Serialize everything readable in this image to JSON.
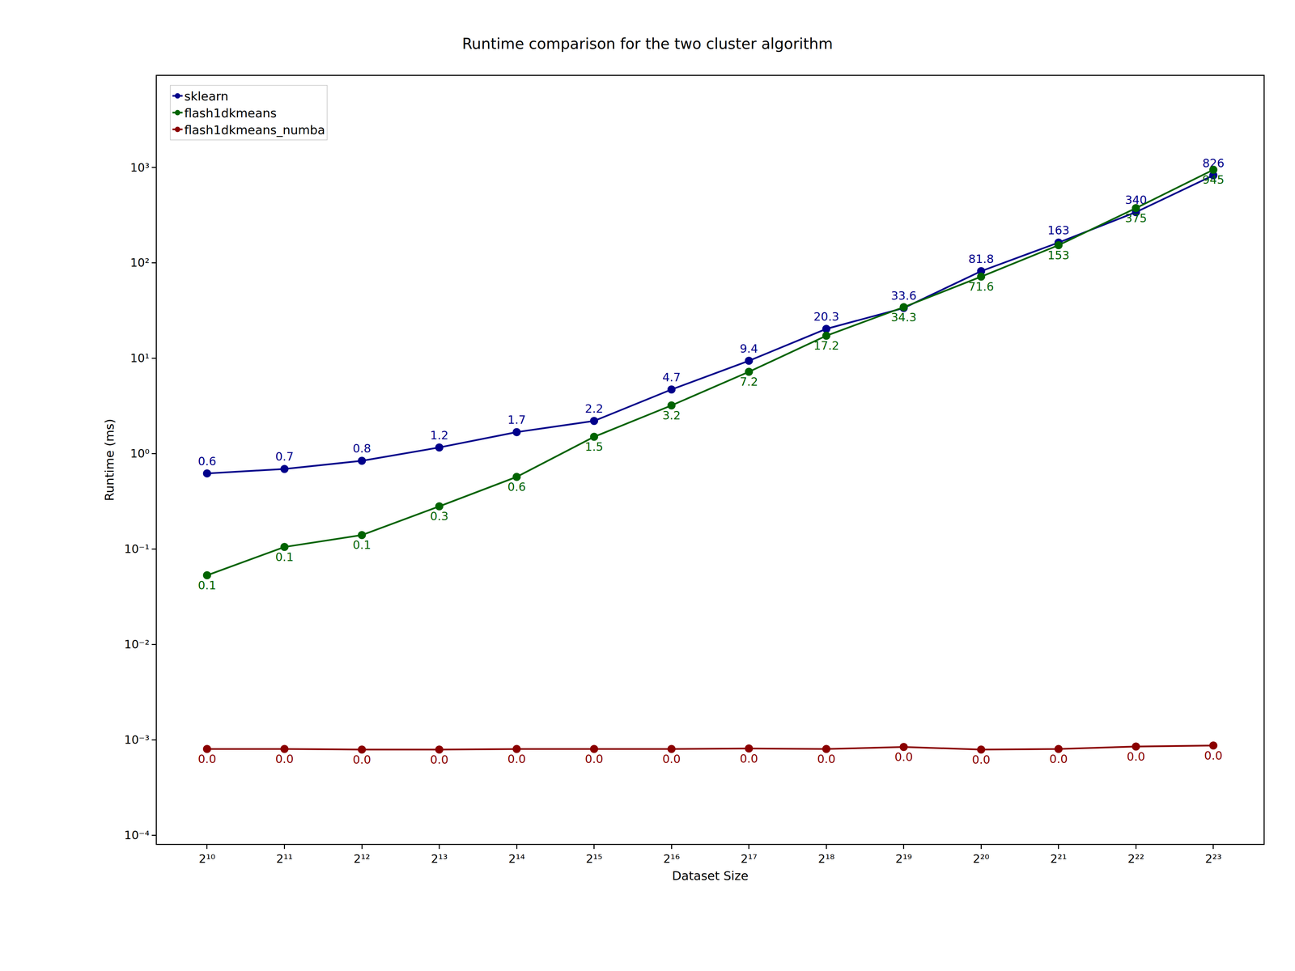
{
  "chart_data": {
    "type": "line",
    "title": "Runtime comparison for the two cluster algorithm",
    "x_label": "Dataset Size",
    "y_label": "Runtime (ms)",
    "x": [
      1024,
      2048,
      4096,
      8192,
      16384,
      32768,
      65536,
      131072,
      262144,
      524288,
      1048576,
      2097152,
      4194304,
      8388608
    ],
    "series": [
      {
        "name": "sklearn",
        "color": "#00008b",
        "marker": "circle",
        "line_style": "solid",
        "values": [
          0.62,
          0.69,
          0.84,
          1.16,
          1.68,
          2.2,
          4.7,
          9.4,
          20.3,
          33.6,
          81.8,
          163,
          340,
          826
        ],
        "value_labels": [
          "0.6",
          "0.7",
          "0.8",
          "1.2",
          "1.7",
          "2.2",
          "4.7",
          "9.4",
          "20.3",
          "33.6",
          "81.8",
          "163",
          "340",
          "826"
        ]
      },
      {
        "name": "flash1dkmeans",
        "color": "#006400",
        "marker": "circle",
        "line_style": "solid",
        "values": [
          0.053,
          0.105,
          0.14,
          0.28,
          0.57,
          1.5,
          3.2,
          7.2,
          17.2,
          34.3,
          71.6,
          153,
          375,
          945
        ],
        "value_labels": [
          "0.1",
          "0.1",
          "0.1",
          "0.3",
          "0.6",
          "1.5",
          "3.2",
          "7.2",
          "17.2",
          "34.3",
          "71.6",
          "153",
          "375",
          "945"
        ]
      },
      {
        "name": "flash1dkmeans_numba",
        "color": "#8b0000",
        "marker": "circle",
        "line_style": "solid",
        "values": [
          0.0008,
          0.0008,
          0.00079,
          0.00079,
          0.0008,
          0.0008,
          0.0008,
          0.00081,
          0.0008,
          0.00084,
          0.00079,
          0.0008,
          0.00085,
          0.00087
        ],
        "value_labels": [
          "0.0",
          "0.0",
          "0.0",
          "0.0",
          "0.0",
          "0.0",
          "0.0",
          "0.0",
          "0.0",
          "0.0",
          "0.0",
          "0.0",
          "0.0",
          "0.0"
        ]
      }
    ],
    "log": true,
    "xlim": [
      653,
      13160000
    ],
    "xticks": [
      {
        "value": 1024,
        "label": "2¹⁰"
      },
      {
        "value": 2048,
        "label": "2¹¹"
      },
      {
        "value": 4096,
        "label": "2¹²"
      },
      {
        "value": 8192,
        "label": "2¹³"
      },
      {
        "value": 16384,
        "label": "2¹⁴"
      },
      {
        "value": 32768,
        "label": "2¹⁵"
      },
      {
        "value": 65536,
        "label": "2¹⁶"
      },
      {
        "value": 131072,
        "label": "2¹⁷"
      },
      {
        "value": 262144,
        "label": "2¹⁸"
      },
      {
        "value": 524288,
        "label": "2¹⁹"
      },
      {
        "value": 1048576,
        "label": "2²⁰"
      },
      {
        "value": 2097152,
        "label": "2²¹"
      },
      {
        "value": 4194304,
        "label": "2²²"
      },
      {
        "value": 8388608,
        "label": "2²³"
      }
    ],
    "ylim": [
      8.1e-05,
      9120
    ],
    "yticks": [
      {
        "value": 0.0001,
        "label": "10⁻⁴"
      },
      {
        "value": 0.001,
        "label": "10⁻³"
      },
      {
        "value": 0.01,
        "label": "10⁻²"
      },
      {
        "value": 0.1,
        "label": "10⁻¹"
      },
      {
        "value": 1,
        "label": "10⁰"
      },
      {
        "value": 10,
        "label": "10¹"
      },
      {
        "value": 100,
        "label": "10²"
      },
      {
        "value": 1000,
        "label": "10³"
      }
    ],
    "grid": false,
    "legend": "upper left",
    "data_labels": true
  }
}
